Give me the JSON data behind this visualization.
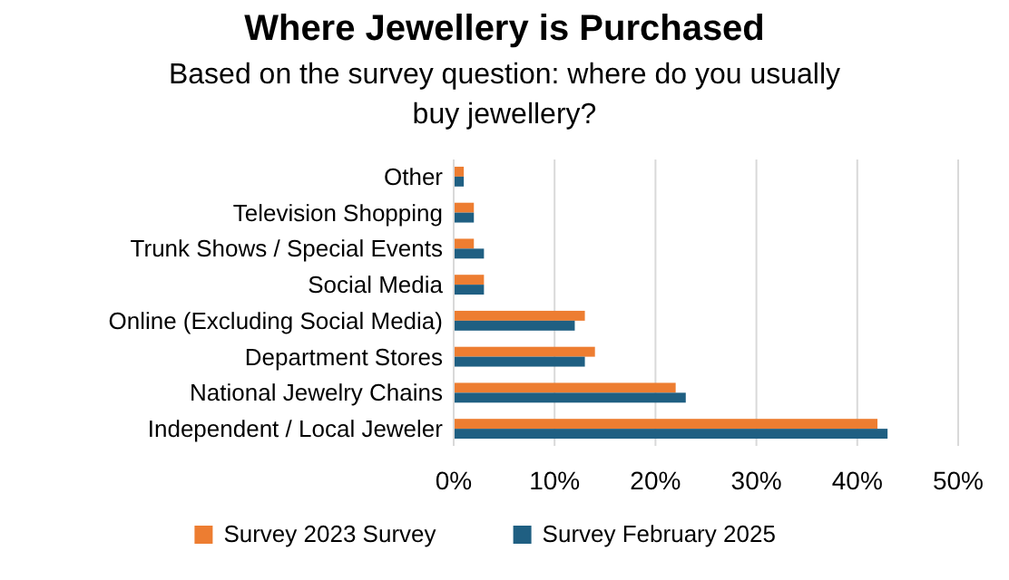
{
  "chart_data": {
    "type": "bar",
    "orientation": "horizontal",
    "title": "Where Jewellery is Purchased",
    "subtitle": "Based on the survey question: where do you usually buy jewellery?",
    "categories": [
      "Other",
      "Television Shopping",
      "Trunk Shows / Special Events",
      "Social Media",
      "Online (Excluding Social Media)",
      "Department Stores",
      "National Jewelry Chains",
      "Independent / Local Jeweler"
    ],
    "series": [
      {
        "name": "Survey 2023 Survey",
        "color": "#ed7d31",
        "values": [
          1,
          2,
          2,
          3,
          13,
          14,
          22,
          42
        ]
      },
      {
        "name": "Survey February 2025",
        "color": "#1f5f82",
        "values": [
          1,
          2,
          3,
          3,
          12,
          13,
          23,
          43
        ]
      }
    ],
    "xlim": [
      0,
      50
    ],
    "xticks": [
      {
        "value": 0,
        "label": "0%"
      },
      {
        "value": 10,
        "label": "10%"
      },
      {
        "value": 20,
        "label": "20%"
      },
      {
        "value": 30,
        "label": "30%"
      },
      {
        "value": 40,
        "label": "40%"
      },
      {
        "value": 50,
        "label": "50%"
      }
    ],
    "grid": "x",
    "legend": "bottom"
  }
}
